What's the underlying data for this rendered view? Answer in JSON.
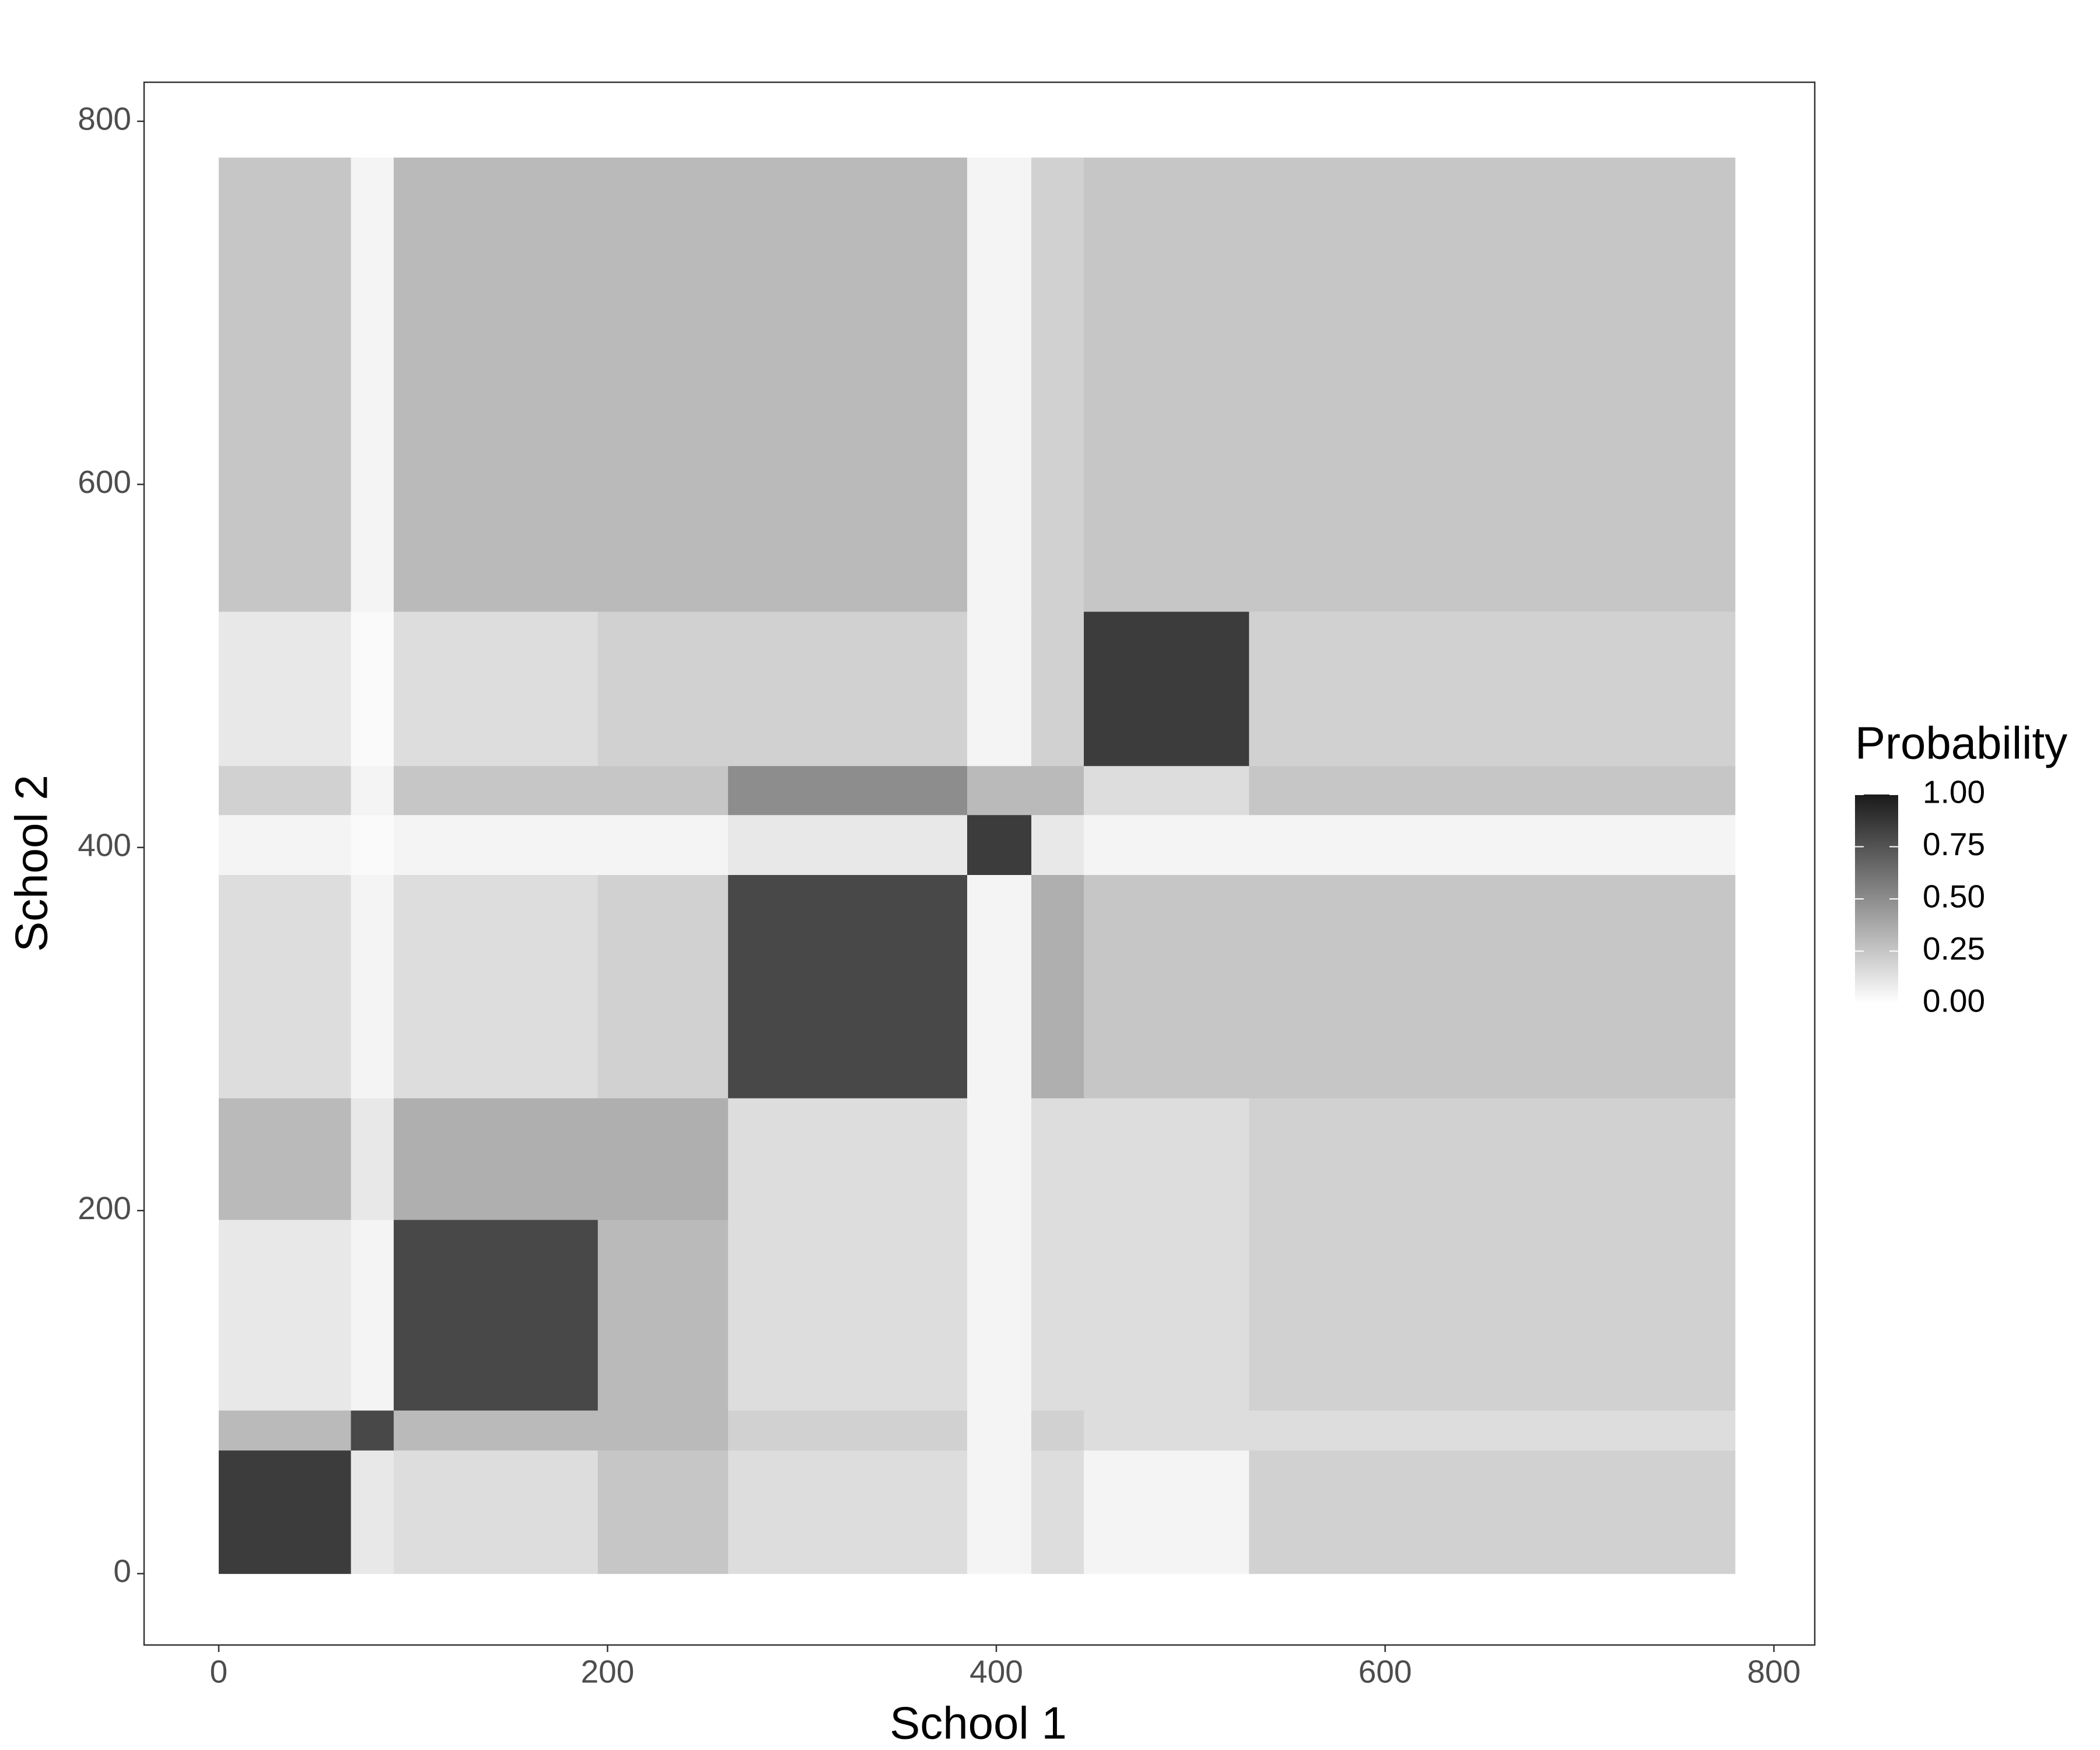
{
  "chart_data": {
    "type": "heatmap",
    "x_label": "School 1",
    "y_label": "School 2",
    "legend_title": "Probability",
    "bins": [
      0,
      68,
      90,
      195,
      262,
      385,
      418,
      445,
      530,
      780
    ],
    "z": [
      [
        0.85,
        0.1,
        0.15,
        0.25,
        0.15,
        0.05,
        0.15,
        0.05,
        0.2
      ],
      [
        0.3,
        0.8,
        0.3,
        0.3,
        0.2,
        0.05,
        0.2,
        0.15,
        0.15
      ],
      [
        0.1,
        0.05,
        0.8,
        0.3,
        0.15,
        0.05,
        0.15,
        0.15,
        0.2
      ],
      [
        0.3,
        0.1,
        0.35,
        0.35,
        0.15,
        0.05,
        0.15,
        0.15,
        0.2
      ],
      [
        0.15,
        0.05,
        0.15,
        0.2,
        0.8,
        0.05,
        0.35,
        0.25,
        0.25
      ],
      [
        0.05,
        0.02,
        0.05,
        0.05,
        0.1,
        0.85,
        0.1,
        0.05,
        0.05
      ],
      [
        0.2,
        0.05,
        0.25,
        0.25,
        0.5,
        0.3,
        0.3,
        0.15,
        0.25
      ],
      [
        0.1,
        0.02,
        0.15,
        0.2,
        0.2,
        0.05,
        0.2,
        0.85,
        0.2
      ],
      [
        0.25,
        0.05,
        0.3,
        0.3,
        0.3,
        0.05,
        0.2,
        0.25,
        0.25
      ]
    ],
    "xlim": [
      -38.4,
      821
    ],
    "ylim": [
      -39.3,
      821.5
    ],
    "xticks": [
      0,
      200,
      400,
      600,
      800
    ],
    "yticks": [
      0,
      200,
      400,
      600,
      800
    ],
    "colorscale": {
      "low": "#ffffff",
      "high": "#1a1a1a",
      "range": [
        0,
        1
      ],
      "ticks": [
        {
          "value": 0,
          "label": "0.00"
        },
        {
          "value": 0.25,
          "label": "0.25"
        },
        {
          "value": 0.5,
          "label": "0.50"
        },
        {
          "value": 0.75,
          "label": "0.75"
        },
        {
          "value": 1,
          "label": "1.00"
        }
      ]
    }
  }
}
